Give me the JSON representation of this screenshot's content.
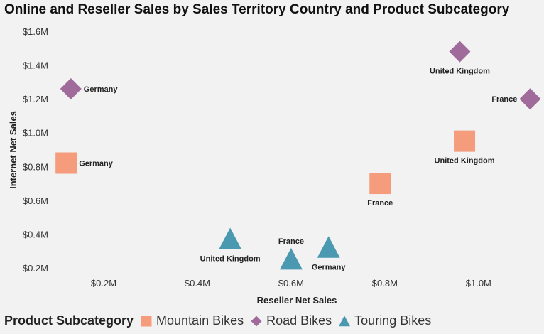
{
  "chart_data": {
    "type": "scatter",
    "title": "Online and Reseller Sales by Sales Territory Country and Product Subcategory",
    "xlabel": "Reseller Net Sales",
    "ylabel": "Internet Net Sales",
    "xlim": [
      0.1,
      1.12
    ],
    "ylim": [
      0.17,
      1.63
    ],
    "x_ticks": [
      0.2,
      0.4,
      0.6,
      0.8,
      1.0
    ],
    "x_tick_labels": [
      "$0.2M",
      "$0.4M",
      "$0.6M",
      "$0.8M",
      "$1.0M"
    ],
    "y_ticks": [
      0.2,
      0.4,
      0.6,
      0.8,
      1.0,
      1.2,
      1.4,
      1.6
    ],
    "y_tick_labels": [
      "$0.2M",
      "$0.4M",
      "$0.6M",
      "$0.8M",
      "$1.0M",
      "$1.2M",
      "$1.4M",
      "$1.6M"
    ],
    "grid": false,
    "legend_title": "Product Subcategory",
    "legend_position": "bottom-left",
    "series": [
      {
        "name": "Mountain Bikes",
        "marker": "square",
        "color": "#f59c7c",
        "points": [
          {
            "label": "Germany",
            "x": 0.12,
            "y": 0.82,
            "label_pos": "right"
          },
          {
            "label": "France",
            "x": 0.79,
            "y": 0.7,
            "label_pos": "below"
          },
          {
            "label": "United Kingdom",
            "x": 0.97,
            "y": 0.95,
            "label_pos": "below"
          }
        ]
      },
      {
        "name": "Road Bikes",
        "marker": "diamond",
        "color": "#a06b9b",
        "points": [
          {
            "label": "Germany",
            "x": 0.13,
            "y": 1.26,
            "label_pos": "right"
          },
          {
            "label": "United Kingdom",
            "x": 0.96,
            "y": 1.48,
            "label_pos": "below"
          },
          {
            "label": "France",
            "x": 1.11,
            "y": 1.2,
            "label_pos": "left"
          }
        ]
      },
      {
        "name": "Touring Bikes",
        "marker": "triangle",
        "color": "#4b98b1",
        "points": [
          {
            "label": "United Kingdom",
            "x": 0.47,
            "y": 0.37,
            "label_pos": "below"
          },
          {
            "label": "France",
            "x": 0.6,
            "y": 0.25,
            "label_pos": "above"
          },
          {
            "label": "Germany",
            "x": 0.68,
            "y": 0.32,
            "label_pos": "below"
          }
        ]
      }
    ]
  }
}
